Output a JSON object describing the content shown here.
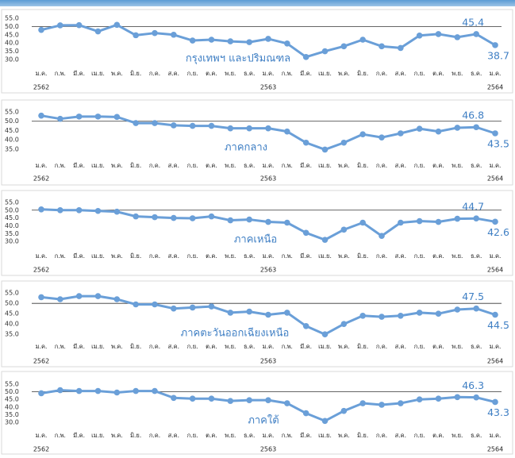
{
  "chart_data": [
    {
      "type": "line",
      "title": "กรุงเทพฯ และปริมณฑล",
      "categories": [
        "ม.ค.",
        "ก.พ.",
        "มี.ค.",
        "เม.ย.",
        "พ.ค.",
        "มิ.ย.",
        "ก.ค.",
        "ส.ค.",
        "ก.ย.",
        "ต.ค.",
        "พ.ย.",
        "ธ.ค.",
        "ม.ค.",
        "ก.พ.",
        "มี.ค.",
        "เม.ย.",
        "พ.ค.",
        "มิ.ย.",
        "ก.ค.",
        "ส.ค.",
        "ก.ย.",
        "ต.ค.",
        "พ.ย.",
        "ธ.ค.",
        "ม.ค."
      ],
      "year_labels": [
        "2562",
        null,
        null,
        null,
        null,
        null,
        null,
        null,
        null,
        null,
        null,
        null,
        "2563",
        null,
        null,
        null,
        null,
        null,
        null,
        null,
        null,
        null,
        null,
        null,
        "2564"
      ],
      "values": [
        47.9,
        50.7,
        50.8,
        47,
        51,
        44.7,
        46,
        45,
        41.5,
        42,
        41,
        40.5,
        42.5,
        39.7,
        31.5,
        35,
        38,
        42,
        38,
        37,
        44.5,
        45.4,
        43.5,
        45.4,
        38.7
      ],
      "value_labels": [
        null,
        null,
        null,
        null,
        null,
        null,
        null,
        null,
        null,
        null,
        null,
        null,
        null,
        null,
        null,
        null,
        null,
        null,
        null,
        null,
        null,
        null,
        null,
        "45.4",
        "38.7"
      ],
      "color": "#6a9fd8",
      "reference_line": 50,
      "ylim": [
        27,
        57
      ],
      "yticks": [
        {
          "value": 30,
          "label": "30.0"
        },
        {
          "value": 35,
          "label": "35.0"
        },
        {
          "value": 40,
          "label": "40.0"
        },
        {
          "value": 45,
          "label": "45.0"
        },
        {
          "value": 50,
          "label": "50.0"
        },
        {
          "value": 55,
          "label": "55.0"
        }
      ]
    },
    {
      "type": "line",
      "title": "ภาคกลาง",
      "categories": [
        "ม.ค.",
        "ก.พ.",
        "มี.ค.",
        "เม.ย.",
        "พ.ค.",
        "มิ.ย.",
        "ก.ค.",
        "ส.ค.",
        "ก.ย.",
        "ต.ค.",
        "พ.ย.",
        "ธ.ค.",
        "ม.ค.",
        "ก.พ.",
        "มี.ค.",
        "เม.ย.",
        "พ.ค.",
        "มิ.ย.",
        "ก.ค.",
        "ส.ค.",
        "ก.ย.",
        "ต.ค.",
        "พ.ย.",
        "ธ.ค.",
        "ม.ค."
      ],
      "year_labels": [
        "2562",
        null,
        null,
        null,
        null,
        null,
        null,
        null,
        null,
        null,
        null,
        null,
        "2563",
        null,
        null,
        null,
        null,
        null,
        null,
        null,
        null,
        null,
        null,
        null,
        "2564"
      ],
      "values": [
        53,
        51.3,
        52.5,
        52.5,
        52.3,
        49,
        49,
        47.8,
        47.5,
        47.5,
        46.2,
        46.2,
        46.2,
        44.5,
        38.5,
        34.8,
        38.5,
        43,
        41.3,
        43.5,
        46,
        44.5,
        46.5,
        46.8,
        43.5
      ],
      "value_labels": [
        null,
        null,
        null,
        null,
        null,
        null,
        null,
        null,
        null,
        null,
        null,
        null,
        null,
        null,
        null,
        null,
        null,
        null,
        null,
        null,
        null,
        null,
        null,
        "46.8",
        "43.5"
      ],
      "color": "#6a9fd8",
      "reference_line": 50,
      "ylim": [
        32,
        57
      ],
      "yticks": [
        {
          "value": 35,
          "label": "35.0"
        },
        {
          "value": 40,
          "label": "40.0"
        },
        {
          "value": 45,
          "label": "45.0"
        },
        {
          "value": 50,
          "label": "50.0"
        },
        {
          "value": 55,
          "label": "55.0"
        }
      ]
    },
    {
      "type": "line",
      "title": "ภาคเหนือ",
      "categories": [
        "ม.ค.",
        "ก.พ.",
        "มี.ค.",
        "เม.ย.",
        "พ.ค.",
        "มิ.ย.",
        "ก.ค.",
        "ส.ค.",
        "ก.ย.",
        "ต.ค.",
        "พ.ย.",
        "ธ.ค.",
        "ม.ค.",
        "ก.พ.",
        "มี.ค.",
        "เม.ย.",
        "พ.ค.",
        "มิ.ย.",
        "ก.ค.",
        "ส.ค.",
        "ก.ย.",
        "ต.ค.",
        "พ.ย.",
        "ธ.ค.",
        "ม.ค."
      ],
      "year_labels": [
        "2562",
        null,
        null,
        null,
        null,
        null,
        null,
        null,
        null,
        null,
        null,
        null,
        "2563",
        null,
        null,
        null,
        null,
        null,
        null,
        null,
        null,
        null,
        null,
        null,
        "2564"
      ],
      "values": [
        50.5,
        50,
        50,
        49.5,
        49,
        46,
        45.5,
        45,
        44.8,
        46,
        43.5,
        44,
        42.5,
        42,
        35.5,
        31,
        37.5,
        42,
        33.5,
        42,
        43,
        42.5,
        44.5,
        44.7,
        42.6
      ],
      "value_labels": [
        null,
        null,
        null,
        null,
        null,
        null,
        null,
        null,
        null,
        null,
        null,
        null,
        null,
        null,
        null,
        null,
        null,
        null,
        null,
        null,
        null,
        null,
        null,
        "44.7",
        "42.6"
      ],
      "color": "#6a9fd8",
      "reference_line": 50,
      "ylim": [
        27,
        57
      ],
      "yticks": [
        {
          "value": 30,
          "label": "30.0"
        },
        {
          "value": 35,
          "label": "35.0"
        },
        {
          "value": 40,
          "label": "40.0"
        },
        {
          "value": 45,
          "label": "45.0"
        },
        {
          "value": 50,
          "label": "50.0"
        },
        {
          "value": 55,
          "label": "55.0"
        }
      ]
    },
    {
      "type": "line",
      "title": "ภาคตะวันออกเฉียงเหนือ",
      "categories": [
        "ม.ค.",
        "ก.พ.",
        "มี.ค.",
        "เม.ย.",
        "พ.ค.",
        "มิ.ย.",
        "ก.ค.",
        "ส.ค.",
        "ก.ย.",
        "ต.ค.",
        "พ.ย.",
        "ธ.ค.",
        "ม.ค.",
        "ก.พ.",
        "มี.ค.",
        "เม.ย.",
        "พ.ค.",
        "มิ.ย.",
        "ก.ค.",
        "ส.ค.",
        "ก.ย.",
        "ต.ค.",
        "พ.ย.",
        "ธ.ค.",
        "ม.ค."
      ],
      "year_labels": [
        "2562",
        null,
        null,
        null,
        null,
        null,
        null,
        null,
        null,
        null,
        null,
        null,
        "2563",
        null,
        null,
        null,
        null,
        null,
        null,
        null,
        null,
        null,
        null,
        null,
        "2564"
      ],
      "values": [
        53,
        52,
        53.5,
        53.5,
        52,
        49.5,
        49.5,
        47.5,
        48,
        48.5,
        45.5,
        46,
        44.5,
        45.5,
        39,
        35,
        40,
        44,
        43.5,
        44,
        45.5,
        45,
        47,
        47.5,
        44.5
      ],
      "value_labels": [
        null,
        null,
        null,
        null,
        null,
        null,
        null,
        null,
        null,
        null,
        null,
        null,
        null,
        null,
        null,
        null,
        null,
        null,
        null,
        null,
        null,
        null,
        null,
        "47.5",
        "44.5"
      ],
      "color": "#6a9fd8",
      "reference_line": 50,
      "ylim": [
        32,
        57
      ],
      "yticks": [
        {
          "value": 35,
          "label": "35.0"
        },
        {
          "value": 40,
          "label": "40.0"
        },
        {
          "value": 45,
          "label": "45.0"
        },
        {
          "value": 50,
          "label": "50.0"
        },
        {
          "value": 55,
          "label": "55.0"
        }
      ]
    },
    {
      "type": "line",
      "title": "ภาคใต้",
      "categories": [
        "ม.ค.",
        "ก.พ.",
        "มี.ค.",
        "เม.ย.",
        "พ.ค.",
        "มิ.ย.",
        "ก.ค.",
        "ส.ค.",
        "ก.ย.",
        "ต.ค.",
        "พ.ย.",
        "ธ.ค.",
        "ม.ค.",
        "ก.พ.",
        "มี.ค.",
        "เม.ย.",
        "พ.ค.",
        "มิ.ย.",
        "ก.ค.",
        "ส.ค.",
        "ก.ย.",
        "ต.ค.",
        "พ.ย.",
        "ธ.ค.",
        "ม.ค."
      ],
      "year_labels": [
        "2562",
        null,
        null,
        null,
        null,
        null,
        null,
        null,
        null,
        null,
        null,
        null,
        "2563",
        null,
        null,
        null,
        null,
        null,
        null,
        null,
        null,
        null,
        null,
        null,
        "2564"
      ],
      "values": [
        49,
        51,
        50.5,
        50.5,
        49.5,
        50.5,
        50.5,
        46,
        45.5,
        45.5,
        44,
        44.5,
        44.5,
        42.5,
        36,
        31,
        37.5,
        42.5,
        41.5,
        42.5,
        45,
        45.5,
        46.5,
        46.3,
        43.3
      ],
      "value_labels": [
        null,
        null,
        null,
        null,
        null,
        null,
        null,
        null,
        null,
        null,
        null,
        null,
        null,
        null,
        null,
        null,
        null,
        null,
        null,
        null,
        null,
        null,
        null,
        "46.3",
        "43.3"
      ],
      "color": "#6a9fd8",
      "reference_line": 50,
      "ylim": [
        27,
        57
      ],
      "yticks": [
        {
          "value": 30,
          "label": "30.0"
        },
        {
          "value": 35,
          "label": "35.0"
        },
        {
          "value": 40,
          "label": "40.0"
        },
        {
          "value": 45,
          "label": "45.0"
        },
        {
          "value": 50,
          "label": "50.0"
        },
        {
          "value": 55,
          "label": "55.0"
        }
      ]
    }
  ]
}
